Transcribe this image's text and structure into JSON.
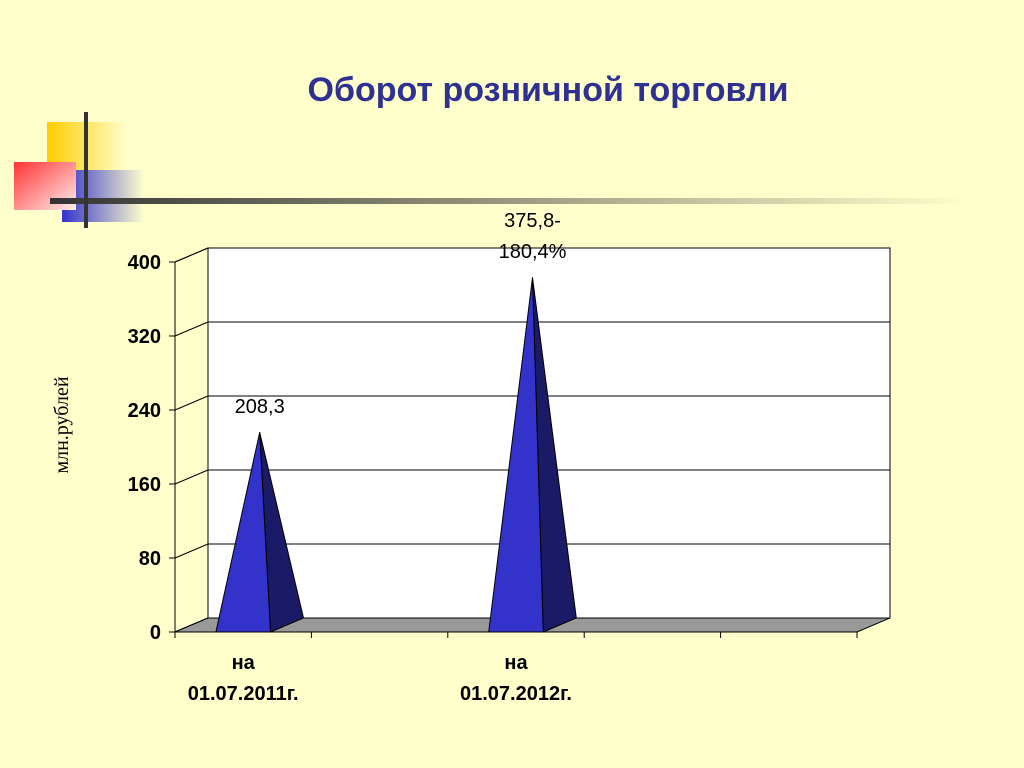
{
  "chart_data": {
    "type": "pyramid",
    "title": "Оборот розничной торговли",
    "y_label": "млн.рублей",
    "categories": [
      "на\n01.07.2011г.",
      null,
      "на\n01.07.2012г.",
      null,
      null
    ],
    "values": [
      208.3,
      null,
      375.8,
      null,
      null
    ],
    "value_labels": [
      "208,3",
      null,
      "375,8-\n180,4%",
      null,
      null
    ],
    "color": "#3333cc",
    "ylim": [
      0,
      400
    ],
    "yticks": [
      0,
      80,
      160,
      240,
      320,
      400
    ],
    "grid": true
  }
}
